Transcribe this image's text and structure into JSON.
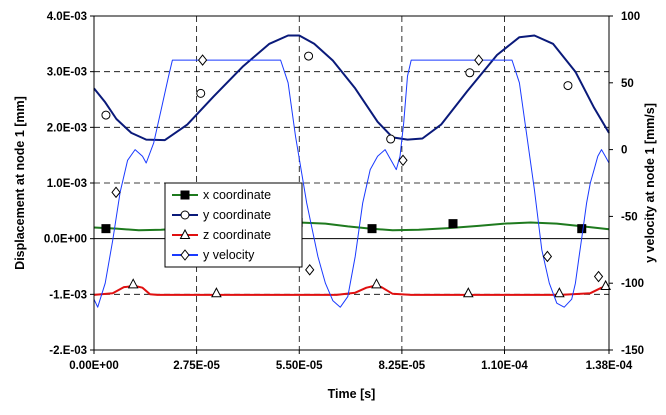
{
  "chart_data": {
    "type": "line",
    "xlabel": "Time [s]",
    "ylabel_left": "Displacement at node 1 [mm]",
    "ylabel_right": "y velocity at node 1 [mm/s]",
    "xlim": [
      0,
      0.000138
    ],
    "ylim_left": [
      -0.002,
      0.004
    ],
    "ylim_right": [
      -150,
      100
    ],
    "x_ticks": [
      {
        "value": 0,
        "label": "0.00E+00"
      },
      {
        "value": 2.75e-05,
        "label": "2.75E-05"
      },
      {
        "value": 5.5e-05,
        "label": "5.50E-05"
      },
      {
        "value": 8.25e-05,
        "label": "8.25E-05"
      },
      {
        "value": 0.00011,
        "label": "1.10E-04"
      },
      {
        "value": 0.000138,
        "label": "1.38E-04"
      }
    ],
    "y_left_ticks": [
      {
        "value": -0.002,
        "label": "-2.E-03"
      },
      {
        "value": -0.001,
        "label": "-1.E-03"
      },
      {
        "value": 0,
        "label": "0.0E+00"
      },
      {
        "value": 0.001,
        "label": "1.0E-03"
      },
      {
        "value": 0.002,
        "label": "2.0E-03"
      },
      {
        "value": 0.003,
        "label": "3.0E-03"
      },
      {
        "value": 0.004,
        "label": "4.0E-03"
      }
    ],
    "y_right_ticks": [
      {
        "value": -150,
        "label": "-150"
      },
      {
        "value": -100,
        "label": "-100"
      },
      {
        "value": -50,
        "label": "-50"
      },
      {
        "value": 0,
        "label": "0"
      },
      {
        "value": 50,
        "label": "50"
      },
      {
        "value": 100,
        "label": "100"
      }
    ],
    "grid": "dashed",
    "legend_position": "center-left",
    "series": [
      {
        "name": "x coordinate",
        "axis": "left",
        "color": "#1e7a1e",
        "marker": "filled-square",
        "x": [
          0,
          6e-06,
          1.2e-05,
          1.8e-05,
          2.5e-05,
          3.2e-05,
          4e-05,
          4.8e-05,
          5.5e-05,
          6.2e-05,
          6.8e-05,
          7.4e-05,
          8e-05,
          8.7e-05,
          9.5e-05,
          0.000103,
          0.00011,
          0.000117,
          0.000124,
          0.000131,
          0.000138
        ],
        "y": [
          0.0002,
          0.00018,
          0.00015,
          0.00016,
          0.00019,
          0.00023,
          0.00027,
          0.00029,
          0.00029,
          0.00027,
          0.00022,
          0.00018,
          0.00015,
          0.00016,
          0.00019,
          0.00023,
          0.00027,
          0.00029,
          0.00027,
          0.00022,
          0.00017
        ],
        "marker_x": [
          3.2e-06,
          5.47e-05,
          7.45e-05,
          9.62e-05,
          0.0001307
        ],
        "marker_y": [
          0.00018,
          0.00029,
          0.00018,
          0.00027,
          0.00018
        ]
      },
      {
        "name": "y coordinate",
        "axis": "left",
        "color": "#0a1a7a",
        "marker": "open-circle",
        "x": [
          0,
          3e-06,
          6e-06,
          1e-05,
          1.4e-05,
          1.9e-05,
          2.5e-05,
          3.2e-05,
          4e-05,
          4.7e-05,
          5.2e-05,
          5.5e-05,
          5.9e-05,
          6.4e-05,
          7e-05,
          7.6e-05,
          8e-05,
          8.4e-05,
          8.8e-05,
          9.3e-05,
          0.0001,
          0.000108,
          0.000114,
          0.000118,
          0.000123,
          0.000129,
          0.000134,
          0.000138
        ],
        "y": [
          0.0027,
          0.00245,
          0.00215,
          0.0019,
          0.00178,
          0.00177,
          0.00205,
          0.00255,
          0.0031,
          0.0035,
          0.00365,
          0.00365,
          0.0035,
          0.0032,
          0.0027,
          0.0021,
          0.00182,
          0.00178,
          0.0018,
          0.00205,
          0.00265,
          0.0033,
          0.00362,
          0.00365,
          0.0035,
          0.003,
          0.00235,
          0.0019
        ],
        "marker_x": [
          3.2e-06,
          2.86e-05,
          5.75e-05,
          7.95e-05,
          0.0001007,
          0.000127
        ],
        "marker_y": [
          0.00222,
          0.00261,
          0.00328,
          0.00179,
          0.00298,
          0.00275
        ]
      },
      {
        "name": "z coordinate",
        "axis": "left",
        "color": "#e01010",
        "marker": "open-triangle",
        "x": [
          0,
          5e-06,
          8e-06,
          1.1e-05,
          1.3e-05,
          1.5e-05,
          1.7e-05,
          2.5e-05,
          4e-05,
          5.5e-05,
          6.5e-05,
          7e-05,
          7.3e-05,
          7.5e-05,
          7.7e-05,
          8e-05,
          8.5e-05,
          0.0001,
          0.000115,
          0.000125,
          0.000133,
          0.000136,
          0.000138
        ],
        "y": [
          -0.00101,
          -0.00098,
          -0.00087,
          -0.00085,
          -0.00088,
          -0.001,
          -0.00101,
          -0.00101,
          -0.00101,
          -0.00101,
          -0.00101,
          -0.00097,
          -0.00088,
          -0.00085,
          -0.00087,
          -0.00099,
          -0.00101,
          -0.00101,
          -0.00101,
          -0.00101,
          -0.00098,
          -0.00088,
          -0.00086
        ],
        "marker_x": [
          1.05e-05,
          3.28e-05,
          7.57e-05,
          0.0001003,
          0.0001247,
          0.0001371
        ],
        "marker_y": [
          -0.00082,
          -0.00098,
          -0.00082,
          -0.00098,
          -0.00098,
          -0.00085
        ]
      },
      {
        "name": "y velocity",
        "axis": "right",
        "color": "#1a3aff",
        "marker": "open-diamond",
        "x": [
          0,
          1e-06,
          3e-06,
          5e-06,
          7e-06,
          9e-06,
          1.1e-05,
          1.3e-05,
          1.4e-05,
          1.6e-05,
          1.8e-05,
          2e-05,
          2.1e-05,
          2.2e-05,
          2.5e-05,
          3e-05,
          3.5e-05,
          4e-05,
          4.5e-05,
          4.8e-05,
          5e-05,
          5.2e-05,
          5.4e-05,
          5.7e-05,
          6e-05,
          6.2e-05,
          6.4e-05,
          6.6e-05,
          6.8e-05,
          7e-05,
          7.2e-05,
          7.4e-05,
          7.6e-05,
          7.8e-05,
          7.9e-05,
          8e-05,
          8.1e-05,
          8.2e-05,
          8.3e-05,
          8.4e-05,
          8.5e-05,
          8.7e-05,
          9e-05,
          9.5e-05,
          0.0001,
          0.000105,
          0.00011,
          0.000112,
          0.000114,
          0.000116,
          0.000118,
          0.00012,
          0.000122,
          0.000124,
          0.000126,
          0.000128,
          0.000129,
          0.00013,
          0.000131,
          0.000132,
          0.000133,
          0.000134,
          0.000135,
          0.000136,
          0.000137,
          0.000138
        ],
        "y": [
          -112,
          -118,
          -100,
          -68,
          -32,
          -8,
          0,
          -5,
          -10,
          5,
          30,
          55,
          67,
          67,
          67,
          67,
          67,
          67,
          67,
          67,
          67,
          50,
          10,
          -40,
          -80,
          -100,
          -113,
          -118,
          -110,
          -80,
          -40,
          -15,
          -5,
          0,
          -5,
          -10,
          -15,
          -5,
          20,
          55,
          67,
          67,
          67,
          67,
          67,
          67,
          67,
          67,
          50,
          10,
          -30,
          -75,
          -100,
          -115,
          -118,
          -112,
          -100,
          -80,
          -60,
          -40,
          -25,
          -15,
          -5,
          0,
          -5,
          -10
        ],
        "marker_x": [
          5.9e-06,
          2.91e-05,
          5.78e-05,
          8.28e-05,
          0.0001031,
          0.0001215,
          0.0001352
        ],
        "marker_y": [
          -32,
          67,
          -90,
          -8,
          67,
          -80,
          -95
        ]
      }
    ]
  }
}
